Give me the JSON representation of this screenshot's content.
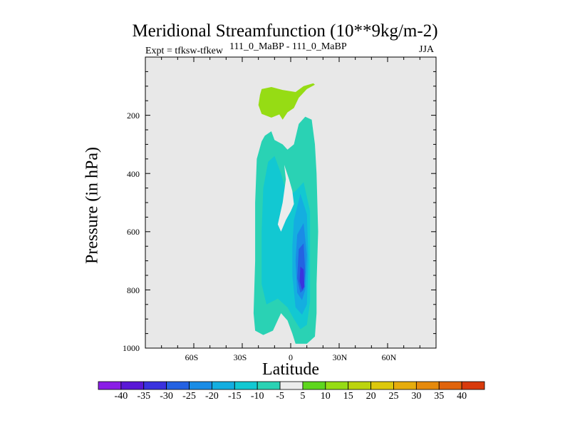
{
  "title": "Meridional Streamfunction (10**9kg/m-2)",
  "subtitle_left": "Expt = tfksw-tfkew",
  "subtitle_center": "111_0_MaBP - 111_0_MaBP",
  "subtitle_right": "JJA",
  "chart_data": {
    "type": "contour",
    "xlabel": "Latitude",
    "ylabel": "Pressure (in hPa)",
    "xlim": [
      -90,
      90
    ],
    "ylim": [
      1000,
      0
    ],
    "x_ticks": [
      {
        "value": -60,
        "label": "60S"
      },
      {
        "value": -30,
        "label": "30S"
      },
      {
        "value": 0,
        "label": "0"
      },
      {
        "value": 30,
        "label": "30N"
      },
      {
        "value": 60,
        "label": "60N"
      }
    ],
    "y_ticks": [
      {
        "value": 200,
        "label": "200"
      },
      {
        "value": 400,
        "label": "400"
      },
      {
        "value": 600,
        "label": "600"
      },
      {
        "value": 800,
        "label": "800"
      },
      {
        "value": 1000,
        "label": "1000"
      }
    ],
    "contour_levels": [
      -40,
      -35,
      -30,
      -25,
      -20,
      -15,
      -10,
      -5,
      5,
      10,
      15,
      20,
      25,
      30,
      35,
      40
    ],
    "level_labels": [
      "-40",
      "-35",
      "-30",
      "-25",
      "-20",
      "-15",
      "-10",
      "-5",
      "5",
      "10",
      "15",
      "20",
      "25",
      "30",
      "35",
      "40"
    ],
    "colors": [
      "#8a1ee6",
      "#5a18d6",
      "#3a32de",
      "#2462e2",
      "#1a8ce6",
      "#14aee0",
      "#12c8d2",
      "#2ad2b4",
      "#ececec",
      "#5ed61e",
      "#96dc14",
      "#bcd40e",
      "#dcc80c",
      "#e6ac0c",
      "#e68a0c",
      "#e0640c",
      "#d83a0c"
    ],
    "background_color": "#e8e8e8",
    "regions": [
      {
        "level": 10,
        "points": [
          [
            -18,
            110
          ],
          [
            -12,
            103
          ],
          [
            -5,
            113
          ],
          [
            3,
            120
          ],
          [
            8,
            100
          ],
          [
            14,
            90
          ],
          [
            15,
            95
          ],
          [
            10,
            110
          ],
          [
            5,
            140
          ],
          [
            2,
            175
          ],
          [
            -2,
            190
          ],
          [
            -5,
            215
          ],
          [
            -7,
            197
          ],
          [
            -12,
            208
          ],
          [
            -18,
            195
          ],
          [
            -20,
            165
          ],
          [
            -19,
            130
          ]
        ]
      },
      {
        "level": -5,
        "points": [
          [
            -16,
            270
          ],
          [
            -12,
            255
          ],
          [
            -10,
            285
          ],
          [
            -5,
            300
          ],
          [
            -2,
            318
          ],
          [
            2,
            300
          ],
          [
            5,
            230
          ],
          [
            9,
            205
          ],
          [
            13,
            215
          ],
          [
            15,
            300
          ],
          [
            16,
            400
          ],
          [
            17,
            600
          ],
          [
            16,
            780
          ],
          [
            16,
            880
          ],
          [
            15,
            960
          ],
          [
            10,
            985
          ],
          [
            3,
            985
          ],
          [
            1,
            950
          ],
          [
            -2,
            905
          ],
          [
            -6,
            880
          ],
          [
            -11,
            940
          ],
          [
            -17,
            955
          ],
          [
            -22,
            940
          ],
          [
            -23,
            880
          ],
          [
            -22,
            700
          ],
          [
            -22,
            500
          ],
          [
            -21,
            350
          ],
          [
            -18,
            290
          ]
        ]
      },
      {
        "level": -10,
        "points": [
          [
            -18,
            310
          ],
          [
            -15,
            290
          ],
          [
            -10,
            310
          ],
          [
            -5,
            330
          ],
          [
            0,
            330
          ],
          [
            4,
            280
          ],
          [
            9,
            232
          ],
          [
            13,
            260
          ],
          [
            14,
            400
          ],
          [
            15,
            600
          ],
          [
            14,
            800
          ],
          [
            13,
            920
          ],
          [
            10,
            965
          ],
          [
            4,
            965
          ],
          [
            2,
            930
          ],
          [
            -1,
            895
          ],
          [
            -6,
            860
          ],
          [
            -11,
            910
          ],
          [
            -17,
            925
          ],
          [
            -21,
            880
          ],
          [
            -21,
            700
          ],
          [
            -20,
            500
          ],
          [
            -20,
            380
          ]
        ]
      },
      {
        "level": -15,
        "points": [
          [
            -14,
            360
          ],
          [
            -10,
            340
          ],
          [
            -6,
            400
          ],
          [
            -2,
            480
          ],
          [
            3,
            460
          ],
          [
            8,
            430
          ],
          [
            12,
            530
          ],
          [
            12,
            700
          ],
          [
            12,
            840
          ],
          [
            10,
            920
          ],
          [
            6,
            935
          ],
          [
            2,
            900
          ],
          [
            -2,
            860
          ],
          [
            -8,
            830
          ],
          [
            -15,
            850
          ],
          [
            -18,
            780
          ],
          [
            -18,
            600
          ],
          [
            -17,
            450
          ]
        ]
      },
      {
        "level": -20,
        "points": [
          [
            2,
            560
          ],
          [
            6,
            470
          ],
          [
            10,
            540
          ],
          [
            11,
            700
          ],
          [
            10,
            850
          ],
          [
            7,
            885
          ],
          [
            3,
            860
          ],
          [
            1,
            750
          ],
          [
            1,
            650
          ]
        ]
      },
      {
        "level": -25,
        "points": [
          [
            4,
            610
          ],
          [
            8,
            570
          ],
          [
            10,
            680
          ],
          [
            9,
            800
          ],
          [
            7,
            835
          ],
          [
            4,
            810
          ],
          [
            3,
            700
          ]
        ]
      },
      {
        "level": -30,
        "points": [
          [
            5,
            660
          ],
          [
            8,
            640
          ],
          [
            9,
            740
          ],
          [
            8,
            800
          ],
          [
            6,
            810
          ],
          [
            4,
            760
          ]
        ]
      },
      {
        "level": -35,
        "points": [
          [
            6,
            720
          ],
          [
            8,
            730
          ],
          [
            8.5,
            790
          ],
          [
            7,
            800
          ],
          [
            5.5,
            770
          ]
        ]
      },
      {
        "level": 0,
        "points": [
          [
            -4,
            370
          ],
          [
            -3,
            420
          ],
          [
            -5,
            500
          ],
          [
            -8,
            575
          ],
          [
            -6,
            600
          ],
          [
            -3,
            560
          ],
          [
            0,
            530
          ],
          [
            2,
            505
          ],
          [
            1,
            460
          ],
          [
            -1,
            420
          ]
        ]
      }
    ]
  }
}
